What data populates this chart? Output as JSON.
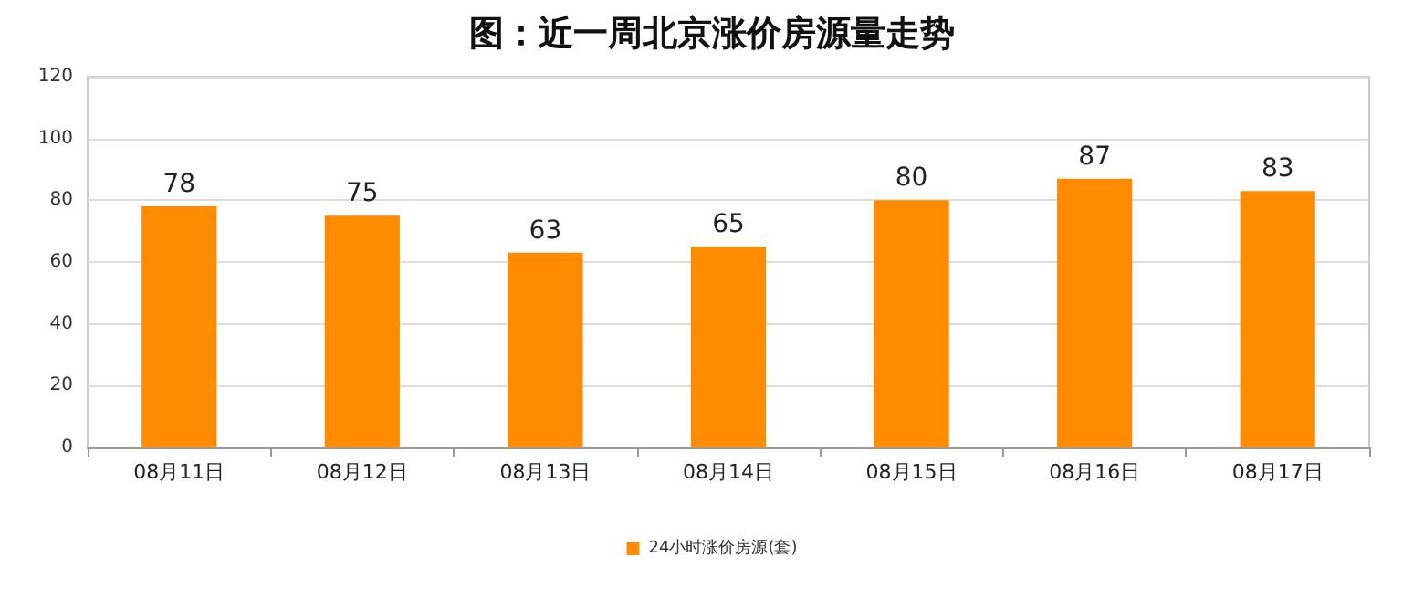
{
  "chart_data": {
    "type": "bar",
    "title": "图：近一周北京涨价房源量走势",
    "categories": [
      "08月11日",
      "08月12日",
      "08月13日",
      "08月14日",
      "08月15日",
      "08月16日",
      "08月17日"
    ],
    "series": [
      {
        "name": "24小时涨价房源(套)",
        "color": "#ff8c00",
        "values": [
          78,
          75,
          63,
          65,
          80,
          87,
          83
        ]
      }
    ],
    "ylim": [
      0,
      120
    ],
    "yticks": [
      0,
      20,
      40,
      60,
      80,
      100,
      120
    ],
    "grid": "y",
    "legend": "bottom",
    "data_labels": true
  }
}
